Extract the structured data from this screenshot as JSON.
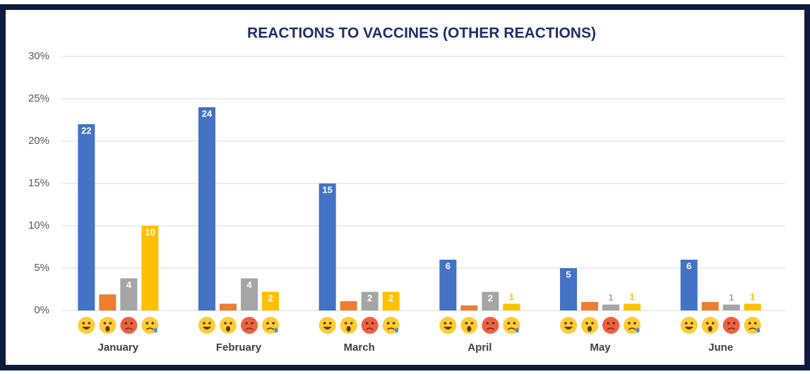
{
  "chart_data": {
    "type": "bar",
    "title": "REACTIONS TO VACCINES (OTHER REACTIONS)",
    "categories": [
      "January",
      "February",
      "March",
      "April",
      "May",
      "June"
    ],
    "series": [
      {
        "color": "#4472c4",
        "values": [
          22,
          24,
          15,
          6,
          5,
          6
        ]
      },
      {
        "color": "#ed7d31",
        "values": [
          1.9,
          0.8,
          1.1,
          0.6,
          1.0,
          1.0
        ]
      },
      {
        "color": "#a5a5a5",
        "values": [
          3.8,
          3.8,
          2.2,
          2.2,
          0.7,
          0.7
        ],
        "value_labels": [
          "4",
          "4",
          "2",
          "2",
          "1",
          "1"
        ]
      },
      {
        "color": "#ffc000",
        "values": [
          10,
          2.2,
          2.2,
          0.8,
          0.8,
          0.8
        ],
        "value_labels": [
          "10",
          "2",
          "2",
          "1",
          "1",
          "1"
        ]
      }
    ],
    "ylim": [
      0,
      30
    ],
    "yticks": [
      {
        "value": 0,
        "label": "0%"
      },
      {
        "value": 5,
        "label": "5%"
      },
      {
        "value": 10,
        "label": "10%"
      },
      {
        "value": 15,
        "label": "15%"
      },
      {
        "value": 20,
        "label": "20%"
      },
      {
        "value": 25,
        "label": "25%"
      },
      {
        "value": 30,
        "label": "30%"
      }
    ],
    "grid": true
  }
}
